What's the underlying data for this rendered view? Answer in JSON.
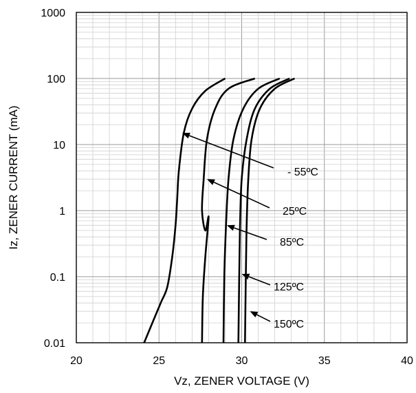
{
  "chart_data": {
    "type": "line",
    "title": "",
    "xlabel": "Vz, ZENER VOLTAGE (V)",
    "ylabel": "Iz, ZENER CURRENT (mA)",
    "xlim": [
      20,
      40
    ],
    "ylim": [
      0.01,
      1000
    ],
    "yscale": "log",
    "grid": true,
    "x_ticks": [
      "20",
      "25",
      "30",
      "35",
      "40"
    ],
    "y_ticks": [
      "0.01",
      "0.1",
      "1",
      "10",
      "100",
      "1000"
    ],
    "series": [
      {
        "name": "- 55ºC",
        "x": [
          24.1,
          24.6,
          25.1,
          25.5,
          25.8,
          26.0,
          26.1,
          26.2,
          26.5,
          27.0,
          27.8,
          29.0
        ],
        "y": [
          0.01,
          0.02,
          0.04,
          0.07,
          0.2,
          0.6,
          1.5,
          4,
          15,
          35,
          65,
          100
        ]
      },
      {
        "name": "25ºC",
        "x": [
          27.6,
          27.65,
          27.8,
          28.0,
          27.8,
          27.6,
          27.7,
          27.9,
          28.4,
          29.2,
          30.8
        ],
        "y": [
          0.01,
          0.05,
          0.2,
          0.8,
          0.5,
          1,
          3,
          12,
          35,
          70,
          100
        ]
      },
      {
        "name": "85ºC",
        "x": [
          28.9,
          28.95,
          29.05,
          29.2,
          29.5,
          30.1,
          31.0,
          32.3
        ],
        "y": [
          0.01,
          0.1,
          0.6,
          3,
          12,
          35,
          70,
          100
        ]
      },
      {
        "name": "125ºC",
        "x": [
          29.8,
          29.85,
          29.9,
          30.0,
          30.3,
          30.8,
          31.7,
          32.9
        ],
        "y": [
          0.01,
          0.1,
          0.6,
          3,
          12,
          35,
          70,
          100
        ]
      },
      {
        "name": "150ºC",
        "x": [
          30.2,
          30.25,
          30.3,
          30.4,
          30.6,
          31.1,
          32.0,
          33.2
        ],
        "y": [
          0.01,
          0.1,
          0.6,
          3,
          12,
          35,
          70,
          100
        ]
      }
    ],
    "annotations": [
      {
        "label": "- 55ºC",
        "arrow_to": [
          26.4,
          15
        ]
      },
      {
        "label": "25ºC",
        "arrow_to": [
          27.9,
          3
        ]
      },
      {
        "label": "85ºC",
        "arrow_to": [
          29.1,
          0.6
        ]
      },
      {
        "label": "125ºC",
        "arrow_to": [
          30.0,
          0.11
        ]
      },
      {
        "label": "150ºC",
        "arrow_to": [
          30.5,
          0.03
        ]
      }
    ]
  }
}
